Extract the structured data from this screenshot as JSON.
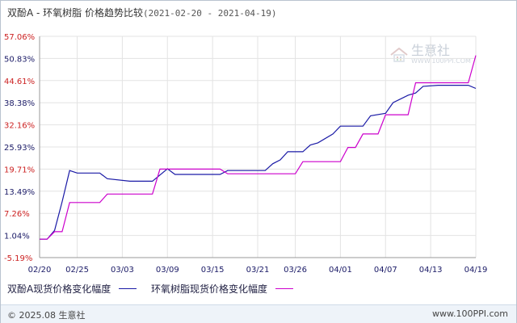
{
  "title": {
    "main": "双酚A - 环氧树脂  价格趋势比较",
    "range": "(2021-02-20 - 2021-04-19)"
  },
  "chart_data": {
    "type": "line",
    "title": "双酚A - 环氧树脂 价格趋势比较(2021-02-20 - 2021-04-19)",
    "xlabel": "",
    "ylabel": "",
    "x_ticks": [
      "02/20",
      "02/25",
      "03/03",
      "03/09",
      "03/15",
      "03/21",
      "03/26",
      "04/01",
      "04/07",
      "04/13",
      "04/19"
    ],
    "y_ticks": [
      "57.06%",
      "50.83%",
      "44.61%",
      "38.38%",
      "32.16%",
      "25.93%",
      "19.71%",
      "13.49%",
      "7.26%",
      "1.04%",
      "-5.19%"
    ],
    "ylim": [
      -5.19,
      57.06
    ],
    "grid": true,
    "legend_position": "bottom",
    "series": [
      {
        "name": "双酚A现货价格变化幅度",
        "color": "#1a1aa6",
        "points": [
          [
            "02/20",
            0.0
          ],
          [
            "02/21",
            0.0
          ],
          [
            "02/22",
            2.5
          ],
          [
            "02/23",
            10.5
          ],
          [
            "02/24",
            19.3
          ],
          [
            "02/25",
            18.6
          ],
          [
            "02/28",
            18.6
          ],
          [
            "03/01",
            17.0
          ],
          [
            "03/04",
            16.3
          ],
          [
            "03/07",
            16.3
          ],
          [
            "03/09",
            19.8
          ],
          [
            "03/10",
            18.2
          ],
          [
            "03/16",
            18.2
          ],
          [
            "03/17",
            19.3
          ],
          [
            "03/22",
            19.3
          ],
          [
            "03/23",
            21.2
          ],
          [
            "03/24",
            22.3
          ],
          [
            "03/25",
            24.6
          ],
          [
            "03/27",
            24.6
          ],
          [
            "03/28",
            26.5
          ],
          [
            "03/29",
            27.1
          ],
          [
            "03/31",
            29.6
          ],
          [
            "04/01",
            31.8
          ],
          [
            "04/04",
            31.8
          ],
          [
            "04/05",
            34.7
          ],
          [
            "04/07",
            35.4
          ],
          [
            "04/08",
            38.4
          ],
          [
            "04/10",
            40.5
          ],
          [
            "04/11",
            41.1
          ],
          [
            "04/12",
            43.0
          ],
          [
            "04/14",
            43.3
          ],
          [
            "04/18",
            43.3
          ],
          [
            "04/19",
            42.4
          ]
        ]
      },
      {
        "name": "环氧树脂现货价格变化幅度",
        "color": "#cc00cc",
        "points": [
          [
            "02/20",
            0.0
          ],
          [
            "02/21",
            0.0
          ],
          [
            "02/22",
            2.1
          ],
          [
            "02/23",
            2.1
          ],
          [
            "02/24",
            10.3
          ],
          [
            "02/25",
            10.3
          ],
          [
            "02/28",
            10.3
          ],
          [
            "03/01",
            12.7
          ],
          [
            "03/07",
            12.7
          ],
          [
            "03/08",
            19.7
          ],
          [
            "03/16",
            19.7
          ],
          [
            "03/17",
            18.4
          ],
          [
            "03/26",
            18.4
          ],
          [
            "03/27",
            21.8
          ],
          [
            "04/01",
            21.8
          ],
          [
            "04/02",
            25.8
          ],
          [
            "04/03",
            25.8
          ],
          [
            "04/04",
            29.6
          ],
          [
            "04/06",
            29.6
          ],
          [
            "04/07",
            35.0
          ],
          [
            "04/10",
            35.0
          ],
          [
            "04/11",
            44.0
          ],
          [
            "04/18",
            44.0
          ],
          [
            "04/19",
            51.7
          ]
        ]
      }
    ]
  },
  "legend": {
    "items": [
      {
        "label": "双酚A现货价格变化幅度",
        "color": "#1a1aa6"
      },
      {
        "label": "环氧树脂现货价格变化幅度",
        "color": "#cc00cc"
      }
    ]
  },
  "watermark": {
    "text": "生意社",
    "url": "WWW.100PPI.COM"
  },
  "footer": {
    "copyright": "© 2025.08 生意社",
    "site": "www.100PPI.com"
  },
  "colors": {
    "tick_red": "#cc2222",
    "tick_blue": "#1a1a66",
    "grid": "#e3e3e3",
    "axis": "#999999"
  }
}
